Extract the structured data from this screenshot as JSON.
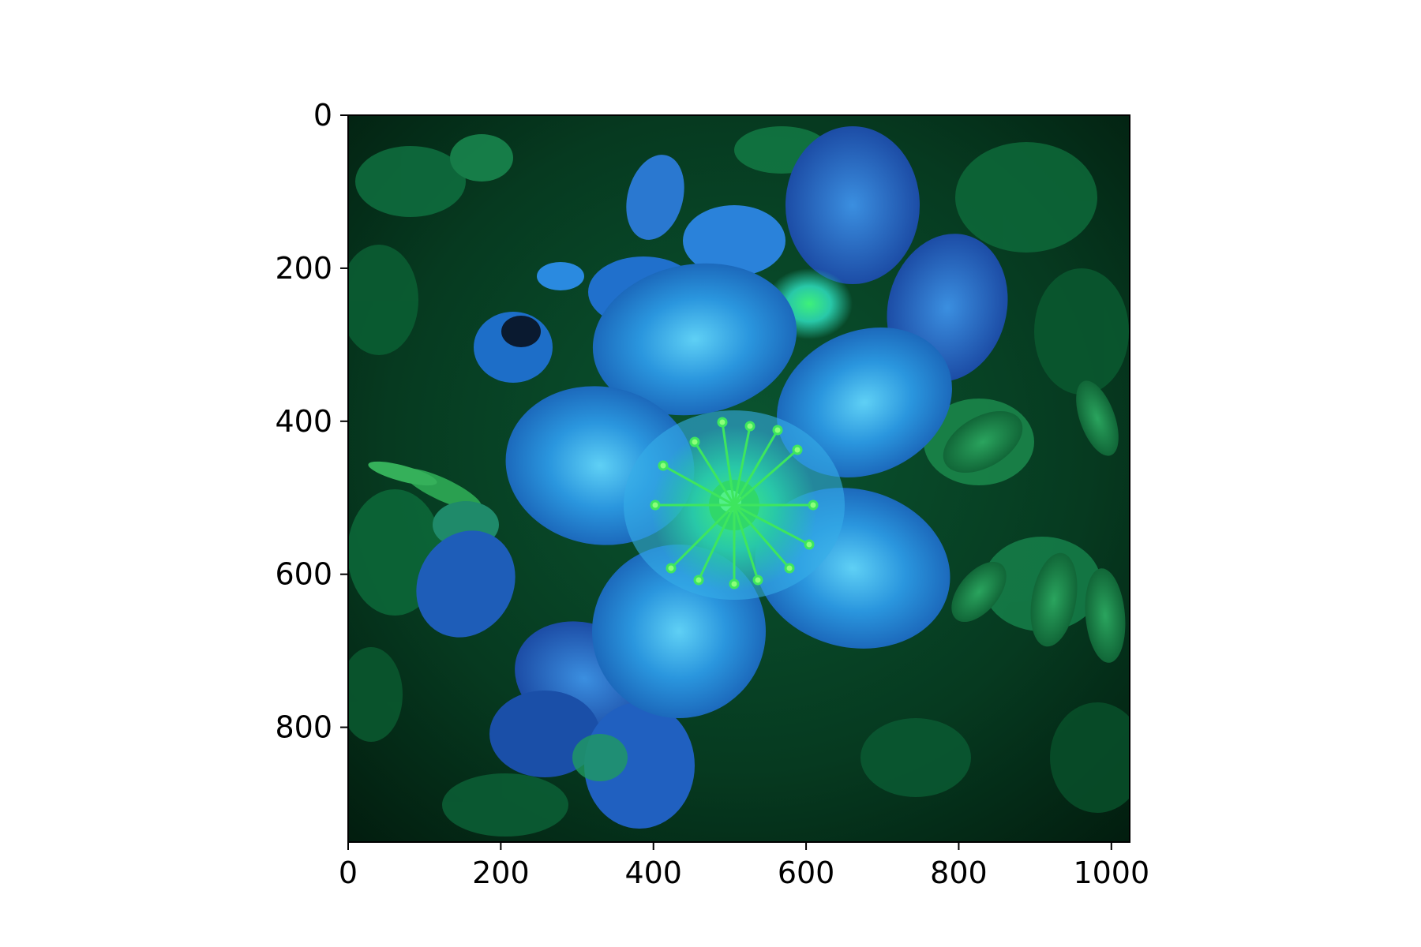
{
  "image": {
    "subject": "flower-photo",
    "colors": {
      "background_dark": "#04301a",
      "foliage": "#0d6a3a",
      "petal_blue": "#1e88d6",
      "petal_shadow": "#1550a8",
      "petal_highlight": "#4cc0f0",
      "stamen_green": "#3cf060",
      "frame": "#000000"
    }
  },
  "axes": {
    "x_ticks": [
      "0",
      "200",
      "400",
      "600",
      "800",
      "1000"
    ],
    "y_ticks": [
      "0",
      "200",
      "400",
      "600",
      "800"
    ],
    "x_tick_values": [
      0,
      200,
      400,
      600,
      800,
      1000
    ],
    "y_tick_values": [
      0,
      200,
      400,
      600,
      800
    ],
    "x_range": [
      0,
      1024
    ],
    "y_range": [
      0,
      950
    ]
  }
}
